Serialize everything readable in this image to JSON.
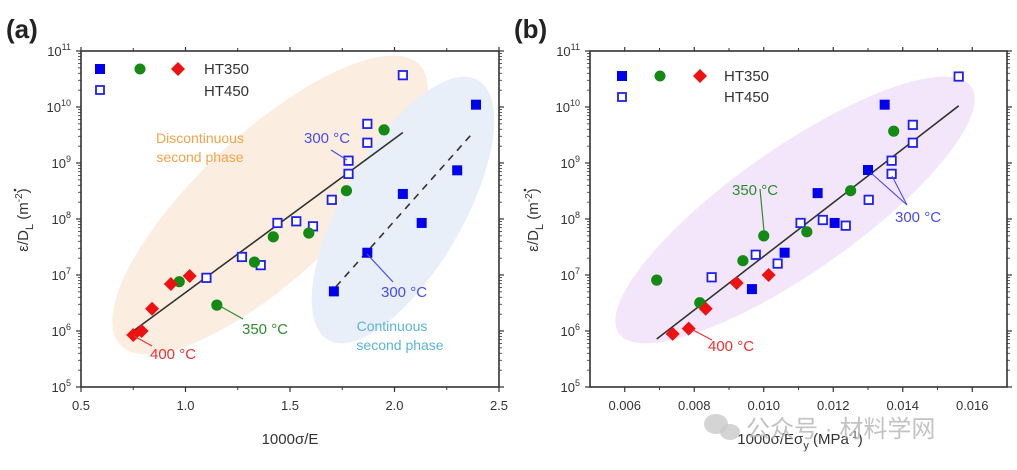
{
  "figure": {
    "watermark": "公众号 · 材料学网"
  },
  "chart_data": [
    {
      "type": "scatter",
      "panel_label": "(a)",
      "xlabel": "1000σ/E",
      "ylabel": "ε̇/D_L (m^-2)",
      "ylabel_main": "ε/D",
      "ylabel_sub": "L",
      "ylabel_unit": " (m",
      "ylabel_unit_sup": "-2",
      "ylabel_close": ")",
      "xlim": [
        0.5,
        2.5
      ],
      "ylim": [
        100000.0,
        100000000000.0
      ],
      "yscale": "log",
      "x_ticks": [
        0.5,
        1.0,
        1.5,
        2.0,
        2.5
      ],
      "x_tick_labels": [
        "0.5",
        "1.0",
        "1.5",
        "2.0",
        "2.5"
      ],
      "y_tick_exponents": [
        5,
        6,
        7,
        8,
        9,
        10,
        11
      ],
      "legend": {
        "placement": "top-left",
        "rows": [
          {
            "markers": [
              "filled-square",
              "circle",
              "diamond"
            ],
            "label": "HT350"
          },
          {
            "markers": [
              "open-square"
            ],
            "label": "HT450"
          }
        ]
      },
      "series": [
        {
          "name": "HT350 300°C",
          "marker": "filled-square",
          "color": "#0000ee",
          "points": [
            [
              2.39,
              11000000000.0
            ],
            [
              2.3,
              740000000.0
            ],
            [
              2.04,
              280000000.0
            ],
            [
              2.13,
              85000000.0
            ],
            [
              1.87,
              25000000.0
            ],
            [
              1.71,
              5100000.0
            ]
          ]
        },
        {
          "name": "HT450 300°C",
          "marker": "open-square",
          "color": "#2020ee",
          "points": [
            [
              2.04,
              37000000000.0
            ],
            [
              1.87,
              5000000000.0
            ],
            [
              1.87,
              2300000000.0
            ],
            [
              1.78,
              1100000000.0
            ],
            [
              1.78,
              640000000.0
            ],
            [
              1.7,
              220000000.0
            ],
            [
              1.44,
              85000000.0
            ],
            [
              1.53,
              91000000.0
            ],
            [
              1.61,
              74000000.0
            ],
            [
              1.27,
              21000000.0
            ],
            [
              1.36,
              15000000.0
            ],
            [
              1.1,
              8900000.0
            ]
          ]
        },
        {
          "name": "HT350 350°C",
          "marker": "circle",
          "color": "#138a13",
          "points": [
            [
              1.95,
              3900000000.0
            ],
            [
              1.77,
              320000000.0
            ],
            [
              1.42,
              48000000.0
            ],
            [
              1.59,
              56000000.0
            ],
            [
              1.33,
              17000000.0
            ],
            [
              0.97,
              7600000.0
            ],
            [
              1.15,
              2900000.0
            ]
          ]
        },
        {
          "name": "HT350 400°C",
          "marker": "diamond",
          "color": "#ee1111",
          "points": [
            [
              1.02,
              9600000.0
            ],
            [
              0.93,
              6900000.0
            ],
            [
              0.84,
              2500000.0
            ],
            [
              0.79,
              1000000.0
            ],
            [
              0.75,
              850000.0
            ]
          ]
        }
      ],
      "fit_lines": [
        {
          "name": "discontinuous-fit",
          "style": "solid",
          "from": [
            0.75,
            1000000.0
          ],
          "to": [
            2.04,
            3500000000.0
          ]
        },
        {
          "name": "continuous-fit",
          "style": "dashed",
          "from": [
            1.72,
            6200000.0
          ],
          "to": [
            2.37,
            3300000000.0
          ]
        }
      ],
      "regions": [
        {
          "name": "discontinuous-region",
          "label_lines": [
            "Discontinuous",
            "second phase"
          ],
          "color": "#fbe9d6",
          "text_color": "#f4a347"
        },
        {
          "name": "continuous-region",
          "label_lines": [
            "Continuous",
            "second phase"
          ],
          "color": "#e5eef8",
          "text_color": "#5ab4d6"
        }
      ],
      "annotations": [
        {
          "text": "300 °C",
          "color": "#4b4bf0",
          "points_to": [
            1.78,
            1100000000.0
          ]
        },
        {
          "text": "300 °C",
          "color": "#4b4bf0",
          "points_to": [
            1.87,
            25000000.0
          ]
        },
        {
          "text": "350 °C",
          "color": "#2e8b2e",
          "points_to": [
            1.15,
            2900000.0
          ]
        },
        {
          "text": "400 °C",
          "color": "#f03030",
          "points_to": [
            0.75,
            850000.0
          ]
        }
      ]
    },
    {
      "type": "scatter",
      "panel_label": "(b)",
      "xlabel_main": "1000σ/Eσ",
      "xlabel_sub": "y",
      "xlabel_unit": " (MPa",
      "xlabel_unit_sup": "-1",
      "xlabel_close": ")",
      "xlabel": "1000σ/Eσ_y (MPa^-1)",
      "ylabel": "ε̇/D_L (m^-2)",
      "xlim": [
        0.005,
        0.017
      ],
      "ylim": [
        100000.0,
        100000000000.0
      ],
      "yscale": "log",
      "x_ticks": [
        0.006,
        0.008,
        0.01,
        0.012,
        0.014,
        0.016
      ],
      "x_tick_labels": [
        "0.006",
        "0.008",
        "0.010",
        "0.012",
        "0.014",
        "0.016"
      ],
      "y_tick_exponents": [
        5,
        6,
        7,
        8,
        9,
        10,
        11
      ],
      "legend": {
        "placement": "top-left",
        "rows": [
          {
            "markers": [
              "filled-square",
              "circle",
              "diamond"
            ],
            "label": "HT350"
          },
          {
            "markers": [
              "open-square"
            ],
            "label": "HT450"
          }
        ]
      },
      "series": [
        {
          "name": "HT350 300°C",
          "marker": "filled-square",
          "color": "#0000ee",
          "points": [
            [
              0.01348,
              11000000000.0
            ],
            [
              0.013,
              750000000.0
            ],
            [
              0.01155,
              290000000.0
            ],
            [
              0.01204,
              85000000.0
            ],
            [
              0.0106,
              25000000.0
            ],
            [
              0.00966,
              5600000.0
            ]
          ]
        },
        {
          "name": "HT450 300°C",
          "marker": "open-square",
          "color": "#2020ee",
          "points": [
            [
              0.01561,
              35000000000.0
            ],
            [
              0.01429,
              4800000000.0
            ],
            [
              0.01429,
              2300000000.0
            ],
            [
              0.01368,
              1100000000.0
            ],
            [
              0.01368,
              640000000.0
            ],
            [
              0.01302,
              220000000.0
            ],
            [
              0.0117,
              96000000.0
            ],
            [
              0.01236,
              76000000.0
            ],
            [
              0.01106,
              85000000.0
            ],
            [
              0.0104,
              16000000.0
            ],
            [
              0.00977,
              23000000.0
            ],
            [
              0.0085,
              9100000.0
            ]
          ]
        },
        {
          "name": "HT350 350°C",
          "marker": "circle",
          "color": "#138a13",
          "points": [
            [
              0.01374,
              3700000000.0
            ],
            [
              0.0125,
              320000000.0
            ],
            [
              0.01124,
              59000000.0
            ],
            [
              0.01,
              50000000.0
            ],
            [
              0.0094,
              18000000.0
            ],
            [
              0.00692,
              8100000.0
            ],
            [
              0.00816,
              3200000.0
            ]
          ]
        },
        {
          "name": "HT350 400°C",
          "marker": "diamond",
          "color": "#ee1111",
          "points": [
            [
              0.01014,
              10000000.0
            ],
            [
              0.00922,
              7200000.0
            ],
            [
              0.00833,
              2500000.0
            ],
            [
              0.00784,
              1100000.0
            ],
            [
              0.00738,
              890000.0
            ]
          ]
        }
      ],
      "fit_lines": [
        {
          "name": "overall-fit",
          "style": "solid",
          "from": [
            0.00692,
            720000.0
          ],
          "to": [
            0.01561,
            10500000000.0
          ]
        }
      ],
      "regions": [
        {
          "name": "all-data-region",
          "color": "#f1e4fa"
        }
      ],
      "annotations": [
        {
          "text": "350 °C",
          "color": "#2e8b2e",
          "points_to": [
            0.01,
            50000000.0
          ]
        },
        {
          "text": "300 °C",
          "color": "#4b4bf0",
          "points_to": [
            0.013,
            750000000.0
          ]
        },
        {
          "text": "400 °C",
          "color": "#f03030",
          "points_to": [
            0.00784,
            1100000.0
          ]
        }
      ]
    }
  ]
}
